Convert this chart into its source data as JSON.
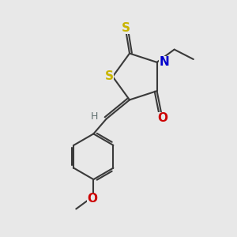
{
  "bg_color": "#e8e8e8",
  "bond_color": "#3a3a3a",
  "S_color": "#c8b400",
  "N_color": "#0000cc",
  "O_color": "#cc0000",
  "H_color": "#607070",
  "bond_width": 1.5,
  "font_size_atom": 11,
  "font_size_H": 9,
  "xlim": [
    0,
    10
  ],
  "ylim": [
    0,
    10
  ]
}
